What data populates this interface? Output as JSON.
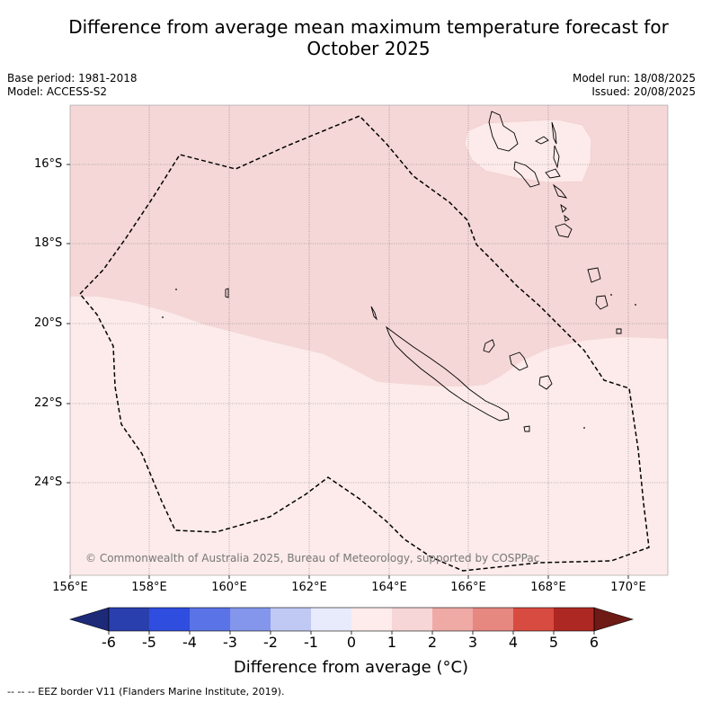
{
  "title": "Difference from average mean maximum temperature forecast for October 2025",
  "title_line1": "Difference from average mean maximum temperature forecast for",
  "title_line2": "October 2025",
  "base_period": "Base period: 1981-2018",
  "model": "Model: ACCESS-S2",
  "model_run": "Model run: 18/08/2025",
  "issued": "Issued: 20/08/2025",
  "lat_ticks": [
    "16°S",
    "18°S",
    "20°S",
    "22°S",
    "24°S"
  ],
  "lon_ticks": [
    "156°E",
    "158°E",
    "160°E",
    "162°E",
    "164°E",
    "166°E",
    "168°E",
    "170°E"
  ],
  "copyright": "© Commonwealth of Australia 2025, Bureau of Meteorology, supported by COSPPac",
  "colorbar": {
    "title": "Difference from average (°C)",
    "tick_labels": [
      "-6",
      "-5",
      "-4",
      "-3",
      "-2",
      "-1",
      "0",
      "1",
      "2",
      "3",
      "4",
      "5",
      "6"
    ],
    "colors": [
      "#1c2a78",
      "#2a3fae",
      "#2f4ddf",
      "#5a73e6",
      "#8496ec",
      "#c0c8f4",
      "#e8ebfb",
      "#fdeceb",
      "#f6d6d6",
      "#efaaa6",
      "#e68780",
      "#d84b40",
      "#ad2823",
      "#6e1a15"
    ]
  },
  "map_fill": {
    "zero_to_one": "#fcebea",
    "one_to_two": "#f5d7d7"
  },
  "footer": "-- -- -- EEZ border V11 (Flanders Marine Institute, 2019)."
}
